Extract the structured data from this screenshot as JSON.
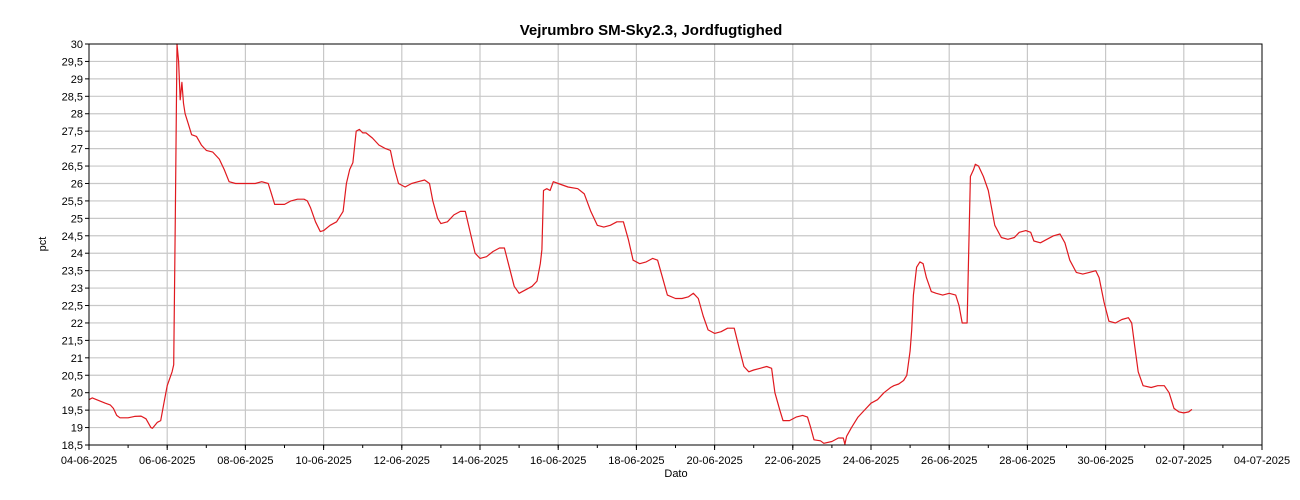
{
  "chart_data": {
    "type": "line",
    "title": "Vejrumbro SM-Sky2.3, Jordfugtighed",
    "xlabel": "Dato",
    "ylabel": "pct",
    "x_unit": "date",
    "xlim": [
      "2025-06-04",
      "2025-07-04"
    ],
    "ylim": [
      18.5,
      30
    ],
    "y_ticks": [
      "18,5",
      "19",
      "19,5",
      "20",
      "20,5",
      "21",
      "21,5",
      "22",
      "22,5",
      "23",
      "23,5",
      "24",
      "24,5",
      "25",
      "25,5",
      "26",
      "26,5",
      "27",
      "27,5",
      "28",
      "28,5",
      "29",
      "29,5",
      "30"
    ],
    "x_ticks": [
      "04-06-2025",
      "06-06-2025",
      "08-06-2025",
      "10-06-2025",
      "12-06-2025",
      "14-06-2025",
      "16-06-2025",
      "18-06-2025",
      "20-06-2025",
      "22-06-2025",
      "24-06-2025",
      "26-06-2025",
      "28-06-2025",
      "30-06-2025",
      "02-07-2025",
      "04-07-2025"
    ],
    "grid": true,
    "legend": "none",
    "series": [
      {
        "color": "#e0191f",
        "points": [
          [
            "2025-06-04 00:00",
            19.8
          ],
          [
            "2025-06-04 02:00",
            19.85
          ],
          [
            "2025-06-04 10:00",
            19.7
          ],
          [
            "2025-06-04 13:00",
            19.65
          ],
          [
            "2025-06-04 15:00",
            19.55
          ],
          [
            "2025-06-04 17:00",
            19.35
          ],
          [
            "2025-06-04 19:00",
            19.28
          ],
          [
            "2025-06-04 22:00",
            19.28
          ],
          [
            "2025-06-05 00:00",
            19.28
          ],
          [
            "2025-06-05 04:00",
            19.32
          ],
          [
            "2025-06-05 08:00",
            19.33
          ],
          [
            "2025-06-05 11:00",
            19.25
          ],
          [
            "2025-06-05 14:00",
            19.0
          ],
          [
            "2025-06-05 15:00",
            18.98
          ],
          [
            "2025-06-05 18:00",
            19.15
          ],
          [
            "2025-06-05 20:00",
            19.2
          ],
          [
            "2025-06-05 22:00",
            19.7
          ],
          [
            "2025-06-06 00:00",
            20.2
          ],
          [
            "2025-06-06 03:00",
            20.6
          ],
          [
            "2025-06-06 04:00",
            20.8
          ],
          [
            "2025-06-06 05:00",
            25.0
          ],
          [
            "2025-06-06 06:00",
            30.0
          ],
          [
            "2025-06-06 07:00",
            29.5
          ],
          [
            "2025-06-06 08:00",
            28.4
          ],
          [
            "2025-06-06 09:00",
            28.9
          ],
          [
            "2025-06-06 10:00",
            28.3
          ],
          [
            "2025-06-06 11:00",
            28.0
          ],
          [
            "2025-06-06 13:00",
            27.7
          ],
          [
            "2025-06-06 15:00",
            27.4
          ],
          [
            "2025-06-06 18:00",
            27.35
          ],
          [
            "2025-06-06 21:00",
            27.1
          ],
          [
            "2025-06-07 00:00",
            26.95
          ],
          [
            "2025-06-07 04:00",
            26.9
          ],
          [
            "2025-06-07 08:00",
            26.7
          ],
          [
            "2025-06-07 11:00",
            26.4
          ],
          [
            "2025-06-07 14:00",
            26.05
          ],
          [
            "2025-06-07 18:00",
            26.0
          ],
          [
            "2025-06-08 00:00",
            26.0
          ],
          [
            "2025-06-08 06:00",
            26.0
          ],
          [
            "2025-06-08 10:00",
            26.05
          ],
          [
            "2025-06-08 14:00",
            26.0
          ],
          [
            "2025-06-08 16:00",
            25.7
          ],
          [
            "2025-06-08 18:00",
            25.4
          ],
          [
            "2025-06-09 00:00",
            25.4
          ],
          [
            "2025-06-09 04:00",
            25.5
          ],
          [
            "2025-06-09 08:00",
            25.55
          ],
          [
            "2025-06-09 12:00",
            25.55
          ],
          [
            "2025-06-09 14:00",
            25.5
          ],
          [
            "2025-06-09 16:00",
            25.3
          ],
          [
            "2025-06-09 19:00",
            24.9
          ],
          [
            "2025-06-09 22:00",
            24.62
          ],
          [
            "2025-06-10 00:00",
            24.65
          ],
          [
            "2025-06-10 04:00",
            24.8
          ],
          [
            "2025-06-10 08:00",
            24.9
          ],
          [
            "2025-06-10 12:00",
            25.2
          ],
          [
            "2025-06-10 14:00",
            26.0
          ],
          [
            "2025-06-10 16:00",
            26.4
          ],
          [
            "2025-06-10 18:00",
            26.6
          ],
          [
            "2025-06-10 20:00",
            27.5
          ],
          [
            "2025-06-10 22:00",
            27.55
          ],
          [
            "2025-06-11 00:00",
            27.45
          ],
          [
            "2025-06-11 02:00",
            27.45
          ],
          [
            "2025-06-11 06:00",
            27.3
          ],
          [
            "2025-06-11 10:00",
            27.1
          ],
          [
            "2025-06-11 14:00",
            27.0
          ],
          [
            "2025-06-11 17:00",
            26.95
          ],
          [
            "2025-06-11 19:00",
            26.5
          ],
          [
            "2025-06-11 22:00",
            26.0
          ],
          [
            "2025-06-12 02:00",
            25.9
          ],
          [
            "2025-06-12 06:00",
            26.0
          ],
          [
            "2025-06-12 10:00",
            26.05
          ],
          [
            "2025-06-12 14:00",
            26.1
          ],
          [
            "2025-06-12 17:00",
            26.0
          ],
          [
            "2025-06-12 19:00",
            25.5
          ],
          [
            "2025-06-12 22:00",
            25.0
          ],
          [
            "2025-06-13 00:00",
            24.85
          ],
          [
            "2025-06-13 04:00",
            24.9
          ],
          [
            "2025-06-13 08:00",
            25.1
          ],
          [
            "2025-06-13 12:00",
            25.2
          ],
          [
            "2025-06-13 15:00",
            25.2
          ],
          [
            "2025-06-13 18:00",
            24.6
          ],
          [
            "2025-06-13 21:00",
            24.0
          ],
          [
            "2025-06-14 00:00",
            23.85
          ],
          [
            "2025-06-14 04:00",
            23.9
          ],
          [
            "2025-06-14 08:00",
            24.05
          ],
          [
            "2025-06-14 12:00",
            24.15
          ],
          [
            "2025-06-14 15:00",
            24.15
          ],
          [
            "2025-06-14 18:00",
            23.6
          ],
          [
            "2025-06-14 21:00",
            23.05
          ],
          [
            "2025-06-15 00:00",
            22.85
          ],
          [
            "2025-06-15 04:00",
            22.95
          ],
          [
            "2025-06-15 08:00",
            23.05
          ],
          [
            "2025-06-15 11:00",
            23.2
          ],
          [
            "2025-06-15 13:00",
            23.7
          ],
          [
            "2025-06-15 14:00",
            24.1
          ],
          [
            "2025-06-15 15:00",
            25.8
          ],
          [
            "2025-06-15 17:00",
            25.85
          ],
          [
            "2025-06-15 19:00",
            25.8
          ],
          [
            "2025-06-15 21:00",
            26.05
          ],
          [
            "2025-06-16 00:00",
            26.0
          ],
          [
            "2025-06-16 06:00",
            25.9
          ],
          [
            "2025-06-16 12:00",
            25.85
          ],
          [
            "2025-06-16 16:00",
            25.7
          ],
          [
            "2025-06-16 20:00",
            25.2
          ],
          [
            "2025-06-17 00:00",
            24.8
          ],
          [
            "2025-06-17 04:00",
            24.75
          ],
          [
            "2025-06-17 08:00",
            24.8
          ],
          [
            "2025-06-17 12:00",
            24.9
          ],
          [
            "2025-06-17 16:00",
            24.9
          ],
          [
            "2025-06-17 19:00",
            24.4
          ],
          [
            "2025-06-17 22:00",
            23.8
          ],
          [
            "2025-06-18 02:00",
            23.7
          ],
          [
            "2025-06-18 06:00",
            23.75
          ],
          [
            "2025-06-18 10:00",
            23.85
          ],
          [
            "2025-06-18 13:00",
            23.8
          ],
          [
            "2025-06-18 16:00",
            23.3
          ],
          [
            "2025-06-18 19:00",
            22.8
          ],
          [
            "2025-06-19 00:00",
            22.7
          ],
          [
            "2025-06-19 04:00",
            22.7
          ],
          [
            "2025-06-19 08:00",
            22.75
          ],
          [
            "2025-06-19 11:00",
            22.85
          ],
          [
            "2025-06-19 14:00",
            22.7
          ],
          [
            "2025-06-19 17:00",
            22.2
          ],
          [
            "2025-06-19 20:00",
            21.8
          ],
          [
            "2025-06-20 00:00",
            21.7
          ],
          [
            "2025-06-20 04:00",
            21.75
          ],
          [
            "2025-06-20 08:00",
            21.85
          ],
          [
            "2025-06-20 12:00",
            21.85
          ],
          [
            "2025-06-20 15:00",
            21.3
          ],
          [
            "2025-06-20 18:00",
            20.75
          ],
          [
            "2025-06-20 21:00",
            20.6
          ],
          [
            "2025-06-21 00:00",
            20.65
          ],
          [
            "2025-06-21 04:00",
            20.7
          ],
          [
            "2025-06-21 08:00",
            20.75
          ],
          [
            "2025-06-21 11:00",
            20.7
          ],
          [
            "2025-06-21 13:00",
            20.0
          ],
          [
            "2025-06-21 16:00",
            19.5
          ],
          [
            "2025-06-21 18:00",
            19.2
          ],
          [
            "2025-06-21 22:00",
            19.2
          ],
          [
            "2025-06-22 02:00",
            19.3
          ],
          [
            "2025-06-22 06:00",
            19.35
          ],
          [
            "2025-06-22 09:00",
            19.3
          ],
          [
            "2025-06-22 11:00",
            19.0
          ],
          [
            "2025-06-22 13:00",
            18.65
          ],
          [
            "2025-06-22 17:00",
            18.62
          ],
          [
            "2025-06-22 19:00",
            18.55
          ],
          [
            "2025-06-23 00:00",
            18.6
          ],
          [
            "2025-06-23 04:00",
            18.7
          ],
          [
            "2025-06-23 07:00",
            18.7
          ],
          [
            "2025-06-23 08:00",
            18.52
          ],
          [
            "2025-06-23 09:00",
            18.75
          ],
          [
            "2025-06-23 12:00",
            19.0
          ],
          [
            "2025-06-23 16:00",
            19.3
          ],
          [
            "2025-06-23 20:00",
            19.5
          ],
          [
            "2025-06-24 00:00",
            19.7
          ],
          [
            "2025-06-24 04:00",
            19.8
          ],
          [
            "2025-06-24 08:00",
            20.0
          ],
          [
            "2025-06-24 12:00",
            20.15
          ],
          [
            "2025-06-24 14:00",
            20.2
          ],
          [
            "2025-06-24 17:00",
            20.25
          ],
          [
            "2025-06-24 20:00",
            20.35
          ],
          [
            "2025-06-24 22:00",
            20.5
          ],
          [
            "2025-06-25 00:00",
            21.2
          ],
          [
            "2025-06-25 01:00",
            21.8
          ],
          [
            "2025-06-25 02:00",
            22.8
          ],
          [
            "2025-06-25 04:00",
            23.6
          ],
          [
            "2025-06-25 06:00",
            23.75
          ],
          [
            "2025-06-25 08:00",
            23.7
          ],
          [
            "2025-06-25 10:00",
            23.3
          ],
          [
            "2025-06-25 13:00",
            22.9
          ],
          [
            "2025-06-25 16:00",
            22.85
          ],
          [
            "2025-06-25 20:00",
            22.8
          ],
          [
            "2025-06-26 00:00",
            22.85
          ],
          [
            "2025-06-26 04:00",
            22.8
          ],
          [
            "2025-06-26 06:00",
            22.5
          ],
          [
            "2025-06-26 08:00",
            22.0
          ],
          [
            "2025-06-26 11:00",
            22.0
          ],
          [
            "2025-06-26 13:00",
            26.2
          ],
          [
            "2025-06-26 15:00",
            26.4
          ],
          [
            "2025-06-26 16:00",
            26.55
          ],
          [
            "2025-06-26 18:00",
            26.5
          ],
          [
            "2025-06-26 21:00",
            26.2
          ],
          [
            "2025-06-27 00:00",
            25.8
          ],
          [
            "2025-06-27 04:00",
            24.8
          ],
          [
            "2025-06-27 08:00",
            24.45
          ],
          [
            "2025-06-27 12:00",
            24.4
          ],
          [
            "2025-06-27 16:00",
            24.45
          ],
          [
            "2025-06-27 19:00",
            24.6
          ],
          [
            "2025-06-27 23:00",
            24.65
          ],
          [
            "2025-06-28 02:00",
            24.6
          ],
          [
            "2025-06-28 04:00",
            24.35
          ],
          [
            "2025-06-28 08:00",
            24.3
          ],
          [
            "2025-06-28 12:00",
            24.4
          ],
          [
            "2025-06-28 16:00",
            24.5
          ],
          [
            "2025-06-28 20:00",
            24.55
          ],
          [
            "2025-06-28 23:00",
            24.3
          ],
          [
            "2025-06-29 02:00",
            23.8
          ],
          [
            "2025-06-29 06:00",
            23.45
          ],
          [
            "2025-06-29 10:00",
            23.4
          ],
          [
            "2025-06-29 14:00",
            23.45
          ],
          [
            "2025-06-29 18:00",
            23.5
          ],
          [
            "2025-06-29 20:00",
            23.3
          ],
          [
            "2025-06-29 23:00",
            22.6
          ],
          [
            "2025-06-30 02:00",
            22.05
          ],
          [
            "2025-06-30 06:00",
            22.0
          ],
          [
            "2025-06-30 10:00",
            22.1
          ],
          [
            "2025-06-30 14:00",
            22.15
          ],
          [
            "2025-06-30 16:00",
            22.0
          ],
          [
            "2025-06-30 18:00",
            21.3
          ],
          [
            "2025-06-30 20:00",
            20.6
          ],
          [
            "2025-06-30 23:00",
            20.2
          ],
          [
            "2025-07-01 04:00",
            20.15
          ],
          [
            "2025-07-01 08:00",
            20.2
          ],
          [
            "2025-07-01 12:00",
            20.2
          ],
          [
            "2025-07-01 15:00",
            20.0
          ],
          [
            "2025-07-01 18:00",
            19.55
          ],
          [
            "2025-07-01 21:00",
            19.45
          ],
          [
            "2025-07-02 00:00",
            19.42
          ],
          [
            "2025-07-02 03:00",
            19.45
          ],
          [
            "2025-07-02 05:00",
            19.52
          ]
        ]
      }
    ]
  },
  "colors": {
    "line": "#e0191f",
    "grid": "#c8c8c8",
    "axis": "#000000",
    "background": "#ffffff"
  }
}
